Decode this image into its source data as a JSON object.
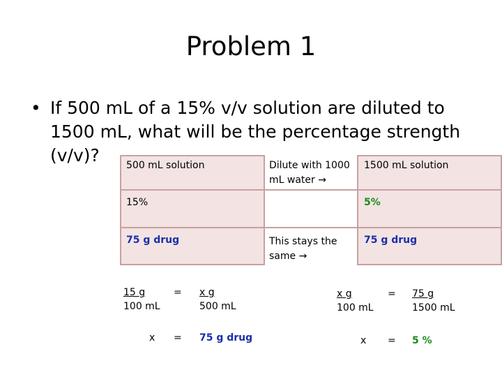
{
  "title": "Problem 1",
  "question": {
    "bullet": "•",
    "line1": "If 500 mL of a 15% v/v solution are diluted to",
    "line2": "1500 mL, what will be the percentage strength",
    "line3": "(v/v)?"
  },
  "table": {
    "left_header": "500 mL solution",
    "middle_header_line1": "Dilute with 1000",
    "middle_header_line2": "mL water",
    "right_header": "1500 mL solution",
    "left_percent": "15%",
    "right_percent": "5%",
    "left_drug": "75 g drug",
    "middle_note_line1": "This stays the",
    "middle_note_line2": "same",
    "right_drug": "75 g drug",
    "arrow": "→"
  },
  "left_calc": {
    "num1": "15 g",
    "den1": "100 mL",
    "eq1": "=",
    "num2": "x g",
    "den2": "500 mL",
    "x_label": "x",
    "eq2": "=",
    "result": "75 g drug"
  },
  "right_calc": {
    "num1": "x g",
    "den1": "100 mL",
    "eq1": "=",
    "num2": "75 g",
    "den2": "1500 mL",
    "x_label": "x",
    "eq2": "=",
    "result": "5 %"
  },
  "colors": {
    "green": "#1e8a1e",
    "blue": "#1a2fa8",
    "box_border": "#c9a0a0",
    "box_fill": "#f3e3e3"
  }
}
